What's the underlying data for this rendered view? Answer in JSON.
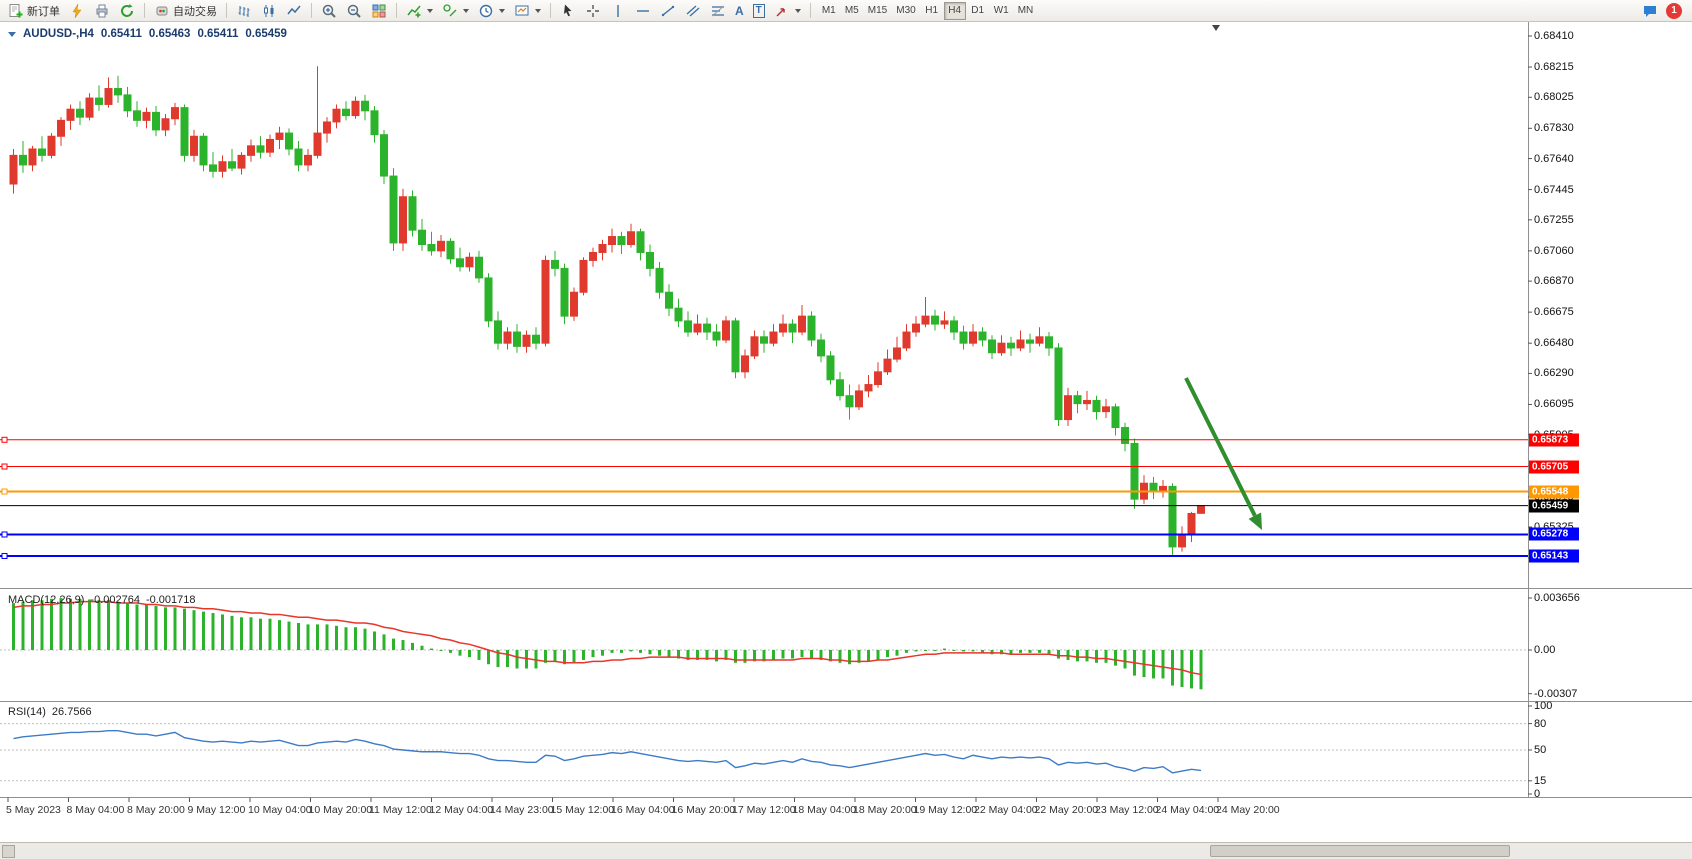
{
  "toolbar": {
    "new_order_label": "新订单",
    "autotrading_label": "自动交易",
    "text_tool_glyph": "A",
    "label_tool_glyph": "T",
    "timeframes": [
      "M1",
      "M5",
      "M15",
      "M30",
      "H1",
      "H4",
      "D1",
      "W1",
      "MN"
    ],
    "active_timeframe": "H4",
    "notification_count": "1"
  },
  "chart": {
    "symbol_period": "AUDUSD-,H4",
    "open": "0.65411",
    "high": "0.65463",
    "low": "0.65411",
    "close": "0.65459",
    "price_axis_labels": [
      "0.68410",
      "0.68215",
      "0.68025",
      "0.67830",
      "0.67640",
      "0.67445",
      "0.67255",
      "0.67060",
      "0.66870",
      "0.66675",
      "0.66480",
      "0.66290",
      "0.66095",
      "0.65905",
      "0.65710",
      "0.65515",
      "0.65325",
      "0.65130"
    ],
    "time_axis_labels": [
      "5 May 2023",
      "8 May 04:00",
      "8 May 20:00",
      "9 May 12:00",
      "10 May 04:00",
      "10 May 20:00",
      "11 May 12:00",
      "12 May 04:00",
      "14 May 23:00",
      "15 May 12:00",
      "16 May 04:00",
      "16 May 20:00",
      "17 May 12:00",
      "18 May 04:00",
      "18 May 20:00",
      "19 May 12:00",
      "22 May 04:00",
      "22 May 20:00",
      "23 May 12:00",
      "24 May 04:00",
      "24 May 20:00"
    ]
  },
  "macd": {
    "label": "MACD(12,26,9)",
    "value_main": "-0.002764",
    "value_signal": "-0.001718",
    "axis_labels": [
      "0.003656",
      "0.00",
      "-0.00307"
    ]
  },
  "rsi": {
    "label": "RSI(14)",
    "value": "26.7566",
    "axis_labels": [
      "100",
      "80",
      "50",
      "15",
      "0"
    ],
    "levels": [
      80,
      50,
      15
    ]
  },
  "chart_data": {
    "type": "candlestick",
    "symbol": "AUDUSD",
    "timeframe": "H4",
    "title": "AUDUSD-,H4",
    "current": {
      "open": 0.65411,
      "high": 0.65463,
      "low": 0.65411,
      "close": 0.65459
    },
    "ylim": [
      0.6505,
      0.6848
    ],
    "colors": {
      "bull": "#e03a2e",
      "bear": "#2cb32c",
      "macd_hist": "#2cb32c",
      "macd_signal": "#e8362b",
      "rsi_line": "#3d7bc8",
      "grid_dash": "#bdbdbd"
    },
    "candles": [
      [
        0.6748,
        0.677,
        0.6742,
        0.6766
      ],
      [
        0.6766,
        0.6775,
        0.6755,
        0.676
      ],
      [
        0.676,
        0.6772,
        0.6756,
        0.677
      ],
      [
        0.677,
        0.6778,
        0.6762,
        0.6766
      ],
      [
        0.6766,
        0.678,
        0.6764,
        0.6778
      ],
      [
        0.6778,
        0.679,
        0.6772,
        0.6788
      ],
      [
        0.6788,
        0.6798,
        0.6782,
        0.6795
      ],
      [
        0.6795,
        0.68,
        0.6785,
        0.679
      ],
      [
        0.679,
        0.6805,
        0.6788,
        0.6802
      ],
      [
        0.6802,
        0.681,
        0.6794,
        0.6798
      ],
      [
        0.6798,
        0.6815,
        0.6796,
        0.6808
      ],
      [
        0.6808,
        0.6816,
        0.6799,
        0.6804
      ],
      [
        0.6804,
        0.6809,
        0.679,
        0.6794
      ],
      [
        0.6794,
        0.68,
        0.6784,
        0.6788
      ],
      [
        0.6788,
        0.6796,
        0.6783,
        0.6793
      ],
      [
        0.6793,
        0.6797,
        0.6778,
        0.6782
      ],
      [
        0.6782,
        0.6792,
        0.6778,
        0.6789
      ],
      [
        0.6789,
        0.6799,
        0.6785,
        0.6796
      ],
      [
        0.6796,
        0.6798,
        0.6762,
        0.6766
      ],
      [
        0.6766,
        0.6782,
        0.6762,
        0.6778
      ],
      [
        0.6778,
        0.678,
        0.6756,
        0.676
      ],
      [
        0.676,
        0.6768,
        0.6752,
        0.6756
      ],
      [
        0.6756,
        0.6766,
        0.6752,
        0.6762
      ],
      [
        0.6762,
        0.677,
        0.6756,
        0.6758
      ],
      [
        0.6758,
        0.6768,
        0.6754,
        0.6766
      ],
      [
        0.6766,
        0.6776,
        0.6762,
        0.6772
      ],
      [
        0.6772,
        0.6778,
        0.6764,
        0.6768
      ],
      [
        0.6768,
        0.6779,
        0.6765,
        0.6776
      ],
      [
        0.6776,
        0.6784,
        0.677,
        0.678
      ],
      [
        0.678,
        0.6783,
        0.6766,
        0.677
      ],
      [
        0.677,
        0.6775,
        0.6756,
        0.676
      ],
      [
        0.676,
        0.677,
        0.6756,
        0.6766
      ],
      [
        0.6766,
        0.6822,
        0.6764,
        0.678
      ],
      [
        0.678,
        0.679,
        0.6774,
        0.6787
      ],
      [
        0.6787,
        0.6798,
        0.6783,
        0.6795
      ],
      [
        0.6795,
        0.68,
        0.6788,
        0.6791
      ],
      [
        0.6791,
        0.6803,
        0.6789,
        0.68
      ],
      [
        0.68,
        0.6804,
        0.6788,
        0.6794
      ],
      [
        0.6794,
        0.6797,
        0.6774,
        0.6779
      ],
      [
        0.6779,
        0.6782,
        0.6748,
        0.6753
      ],
      [
        0.6753,
        0.6758,
        0.6706,
        0.6711
      ],
      [
        0.6711,
        0.6745,
        0.6706,
        0.674
      ],
      [
        0.674,
        0.6744,
        0.6715,
        0.6719
      ],
      [
        0.6719,
        0.6726,
        0.6706,
        0.671
      ],
      [
        0.671,
        0.6718,
        0.6703,
        0.6706
      ],
      [
        0.6706,
        0.6716,
        0.6702,
        0.6712
      ],
      [
        0.6712,
        0.6714,
        0.6698,
        0.6701
      ],
      [
        0.6701,
        0.6708,
        0.6693,
        0.6696
      ],
      [
        0.6696,
        0.6705,
        0.6693,
        0.6702
      ],
      [
        0.6702,
        0.6706,
        0.6686,
        0.6689
      ],
      [
        0.6689,
        0.6692,
        0.6658,
        0.6662
      ],
      [
        0.6662,
        0.6668,
        0.6644,
        0.6648
      ],
      [
        0.6648,
        0.6658,
        0.6644,
        0.6655
      ],
      [
        0.6655,
        0.666,
        0.6642,
        0.6646
      ],
      [
        0.6646,
        0.6656,
        0.6642,
        0.6653
      ],
      [
        0.6653,
        0.6658,
        0.6644,
        0.6648
      ],
      [
        0.6648,
        0.6703,
        0.6646,
        0.67
      ],
      [
        0.67,
        0.6706,
        0.669,
        0.6695
      ],
      [
        0.6695,
        0.6698,
        0.666,
        0.6665
      ],
      [
        0.6665,
        0.6683,
        0.6662,
        0.668
      ],
      [
        0.668,
        0.6702,
        0.6678,
        0.67
      ],
      [
        0.67,
        0.6708,
        0.6696,
        0.6705
      ],
      [
        0.6705,
        0.6713,
        0.67,
        0.671
      ],
      [
        0.671,
        0.672,
        0.6705,
        0.6715
      ],
      [
        0.6715,
        0.6718,
        0.6704,
        0.671
      ],
      [
        0.671,
        0.6723,
        0.6708,
        0.6718
      ],
      [
        0.6718,
        0.672,
        0.67,
        0.6705
      ],
      [
        0.6705,
        0.671,
        0.669,
        0.6695
      ],
      [
        0.6695,
        0.6699,
        0.6676,
        0.668
      ],
      [
        0.668,
        0.6685,
        0.6665,
        0.667
      ],
      [
        0.667,
        0.6676,
        0.6658,
        0.6662
      ],
      [
        0.6662,
        0.6668,
        0.6652,
        0.6655
      ],
      [
        0.6655,
        0.6666,
        0.6653,
        0.666
      ],
      [
        0.666,
        0.6664,
        0.665,
        0.6655
      ],
      [
        0.6655,
        0.666,
        0.6646,
        0.665
      ],
      [
        0.665,
        0.6665,
        0.6648,
        0.6662
      ],
      [
        0.6662,
        0.6664,
        0.6626,
        0.663
      ],
      [
        0.663,
        0.6644,
        0.6626,
        0.664
      ],
      [
        0.664,
        0.6656,
        0.6638,
        0.6652
      ],
      [
        0.6652,
        0.6656,
        0.6642,
        0.6648
      ],
      [
        0.6648,
        0.666,
        0.6646,
        0.6655
      ],
      [
        0.6655,
        0.6666,
        0.6652,
        0.666
      ],
      [
        0.666,
        0.6663,
        0.6648,
        0.6655
      ],
      [
        0.6655,
        0.6672,
        0.6653,
        0.6665
      ],
      [
        0.6665,
        0.6668,
        0.6646,
        0.665
      ],
      [
        0.665,
        0.6654,
        0.6636,
        0.664
      ],
      [
        0.664,
        0.6643,
        0.6622,
        0.6625
      ],
      [
        0.6625,
        0.663,
        0.6612,
        0.6615
      ],
      [
        0.6615,
        0.6622,
        0.66,
        0.6608
      ],
      [
        0.6608,
        0.6622,
        0.6606,
        0.6618
      ],
      [
        0.6618,
        0.6628,
        0.6614,
        0.6622
      ],
      [
        0.6622,
        0.6636,
        0.662,
        0.663
      ],
      [
        0.663,
        0.6644,
        0.6628,
        0.6638
      ],
      [
        0.6638,
        0.6652,
        0.6636,
        0.6645
      ],
      [
        0.6645,
        0.666,
        0.6643,
        0.6655
      ],
      [
        0.6655,
        0.6665,
        0.6652,
        0.666
      ],
      [
        0.666,
        0.6677,
        0.6658,
        0.6665
      ],
      [
        0.6665,
        0.6669,
        0.6656,
        0.666
      ],
      [
        0.666,
        0.6668,
        0.6657,
        0.6662
      ],
      [
        0.6662,
        0.6665,
        0.665,
        0.6655
      ],
      [
        0.6655,
        0.6659,
        0.6644,
        0.6648
      ],
      [
        0.6648,
        0.666,
        0.6646,
        0.6655
      ],
      [
        0.6655,
        0.6658,
        0.6646,
        0.665
      ],
      [
        0.665,
        0.6653,
        0.6638,
        0.6642
      ],
      [
        0.6642,
        0.6653,
        0.664,
        0.6648
      ],
      [
        0.6648,
        0.6652,
        0.664,
        0.6645
      ],
      [
        0.6645,
        0.6656,
        0.6643,
        0.665
      ],
      [
        0.665,
        0.6654,
        0.6642,
        0.6648
      ],
      [
        0.6648,
        0.6658,
        0.6646,
        0.6652
      ],
      [
        0.6652,
        0.6655,
        0.664,
        0.6645
      ],
      [
        0.6645,
        0.6648,
        0.6596,
        0.66
      ],
      [
        0.66,
        0.662,
        0.6596,
        0.6615
      ],
      [
        0.6615,
        0.6618,
        0.6604,
        0.661
      ],
      [
        0.661,
        0.6618,
        0.6606,
        0.6612
      ],
      [
        0.6612,
        0.6615,
        0.66,
        0.6605
      ],
      [
        0.6605,
        0.6613,
        0.6601,
        0.6608
      ],
      [
        0.6608,
        0.661,
        0.659,
        0.6595
      ],
      [
        0.6595,
        0.6598,
        0.658,
        0.6585
      ],
      [
        0.6585,
        0.6588,
        0.6544,
        0.655
      ],
      [
        0.655,
        0.6565,
        0.6547,
        0.656
      ],
      [
        0.656,
        0.6564,
        0.655,
        0.6555
      ],
      [
        0.6555,
        0.6562,
        0.6551,
        0.6558
      ],
      [
        0.6558,
        0.656,
        0.6515,
        0.652
      ],
      [
        0.652,
        0.6533,
        0.6517,
        0.6528
      ],
      [
        0.6528,
        0.6542,
        0.6523,
        0.6541
      ],
      [
        0.65411,
        0.65463,
        0.65411,
        0.65459
      ]
    ],
    "indicators": {
      "macd": {
        "params": "12,26,9",
        "last_main": -0.002764,
        "last_signal": -0.001718,
        "ylim": [
          -0.00307,
          0.003656
        ],
        "histogram": [
          0.0033,
          0.0034,
          0.0035,
          0.0035,
          0.0036,
          0.00365,
          0.0036,
          0.0036,
          0.00355,
          0.0035,
          0.0035,
          0.0034,
          0.0033,
          0.0032,
          0.0032,
          0.0031,
          0.003,
          0.003,
          0.0029,
          0.0028,
          0.0027,
          0.0026,
          0.0025,
          0.0024,
          0.0023,
          0.0023,
          0.0022,
          0.0022,
          0.0021,
          0.002,
          0.0019,
          0.0018,
          0.0018,
          0.0018,
          0.0017,
          0.0016,
          0.0016,
          0.0015,
          0.0013,
          0.0011,
          0.0008,
          0.0007,
          0.0005,
          0.0003,
          0.0001,
          0,
          -0.0002,
          -0.0004,
          -0.0005,
          -0.0007,
          -0.001,
          -0.0012,
          -0.0012,
          -0.0013,
          -0.0013,
          -0.0013,
          -0.0009,
          -0.0008,
          -0.001,
          -0.0009,
          -0.0007,
          -0.0005,
          -0.0004,
          -0.0002,
          -0.0002,
          -0.0001,
          -0.0002,
          -0.0003,
          -0.0004,
          -0.0005,
          -0.0006,
          -0.0007,
          -0.0007,
          -0.0007,
          -0.0008,
          -0.0007,
          -0.0009,
          -0.0009,
          -0.0008,
          -0.0008,
          -0.0007,
          -0.0006,
          -0.0006,
          -0.0005,
          -0.0006,
          -0.0007,
          -0.0008,
          -0.0009,
          -0.001,
          -0.0009,
          -0.0008,
          -0.0007,
          -0.0005,
          -0.0004,
          -0.0002,
          -0.0001,
          0,
          0,
          0.0001,
          0,
          -0.0001,
          -0.0001,
          -0.0002,
          -0.0003,
          -0.0003,
          -0.0003,
          -0.0002,
          -0.0002,
          -0.0002,
          -0.0003,
          -0.0006,
          -0.0007,
          -0.0008,
          -0.0008,
          -0.0009,
          -0.0009,
          -0.0011,
          -0.0013,
          -0.0018,
          -0.0019,
          -0.002,
          -0.002,
          -0.0025,
          -0.0026,
          -0.0027,
          -0.002764
        ],
        "signal": [
          0.003,
          0.0031,
          0.0031,
          0.0032,
          0.0032,
          0.0033,
          0.0033,
          0.0034,
          0.0034,
          0.0034,
          0.0034,
          0.0033,
          0.0033,
          0.0033,
          0.0032,
          0.0032,
          0.0031,
          0.0031,
          0.003,
          0.003,
          0.0029,
          0.0029,
          0.0028,
          0.0027,
          0.0027,
          0.0026,
          0.0026,
          0.0025,
          0.0025,
          0.0024,
          0.0023,
          0.0023,
          0.0022,
          0.0021,
          0.0021,
          0.002,
          0.0019,
          0.0019,
          0.0018,
          0.0016,
          0.0015,
          0.0013,
          0.0012,
          0.0011,
          0.001,
          0.0008,
          0.0007,
          0.0005,
          0.0004,
          0.0002,
          0,
          -0.0002,
          -0.0003,
          -0.0005,
          -0.0006,
          -0.0007,
          -0.0008,
          -0.0008,
          -0.0009,
          -0.0009,
          -0.0009,
          -0.0008,
          -0.0008,
          -0.0007,
          -0.0007,
          -0.0006,
          -0.0006,
          -0.0005,
          -0.0005,
          -0.0005,
          -0.0005,
          -0.0006,
          -0.0006,
          -0.0006,
          -0.0006,
          -0.0006,
          -0.0007,
          -0.0007,
          -0.0007,
          -0.0007,
          -0.0007,
          -0.0007,
          -0.0007,
          -0.0006,
          -0.0006,
          -0.0006,
          -0.0007,
          -0.0007,
          -0.0008,
          -0.0008,
          -0.0008,
          -0.0007,
          -0.0007,
          -0.0006,
          -0.0005,
          -0.0004,
          -0.0003,
          -0.0003,
          -0.0002,
          -0.0002,
          -0.0002,
          -0.0002,
          -0.0002,
          -0.0002,
          -0.0002,
          -0.0003,
          -0.0003,
          -0.0003,
          -0.0003,
          -0.0003,
          -0.0004,
          -0.0004,
          -0.0005,
          -0.0005,
          -0.0006,
          -0.0006,
          -0.0007,
          -0.0008,
          -0.0009,
          -0.001,
          -0.0011,
          -0.0012,
          -0.0013,
          -0.0014,
          -0.0016,
          -0.001718
        ]
      },
      "rsi": {
        "period": 14,
        "last": 26.7566,
        "levels": [
          80,
          50,
          15
        ],
        "values": [
          63,
          65,
          66,
          67,
          68,
          69,
          70,
          70,
          71,
          71,
          72,
          72,
          70,
          68,
          68,
          66,
          68,
          70,
          64,
          62,
          60,
          59,
          60,
          59,
          58,
          60,
          59,
          60,
          61,
          58,
          55,
          55,
          58,
          59,
          60,
          59,
          62,
          60,
          57,
          55,
          51,
          50,
          49,
          48,
          48,
          48,
          47,
          46,
          46,
          44,
          40,
          38,
          38,
          37,
          36,
          36,
          44,
          43,
          38,
          40,
          43,
          44,
          45,
          47,
          46,
          48,
          46,
          44,
          42,
          40,
          38,
          37,
          38,
          37,
          36,
          38,
          30,
          32,
          35,
          34,
          36,
          38,
          36,
          40,
          37,
          36,
          33,
          32,
          30,
          32,
          34,
          36,
          38,
          40,
          42,
          44,
          46,
          44,
          45,
          42,
          40,
          44,
          42,
          40,
          42,
          41,
          42,
          41,
          42,
          40,
          33,
          36,
          35,
          36,
          34,
          35,
          31,
          29,
          26,
          30,
          29,
          31,
          24,
          26,
          28,
          26.76
        ]
      }
    },
    "overlays": {
      "horizontal_lines": [
        {
          "price": 0.65873,
          "color": "#ff0000",
          "width": 1
        },
        {
          "price": 0.65705,
          "color": "#ff0000",
          "width": 1
        },
        {
          "price": 0.65548,
          "color": "#ff9800",
          "width": 2
        },
        {
          "price": 0.65459,
          "color": "#000000",
          "width": 1,
          "handle": false
        },
        {
          "price": 0.65278,
          "color": "#0000ff",
          "width": 2
        },
        {
          "price": 0.65143,
          "color": "#0000ff",
          "width": 2
        }
      ],
      "arrow": {
        "from": [
          1186,
          356
        ],
        "to": [
          1262,
          508
        ],
        "color": "#2f8f2f",
        "width": 4
      }
    }
  }
}
